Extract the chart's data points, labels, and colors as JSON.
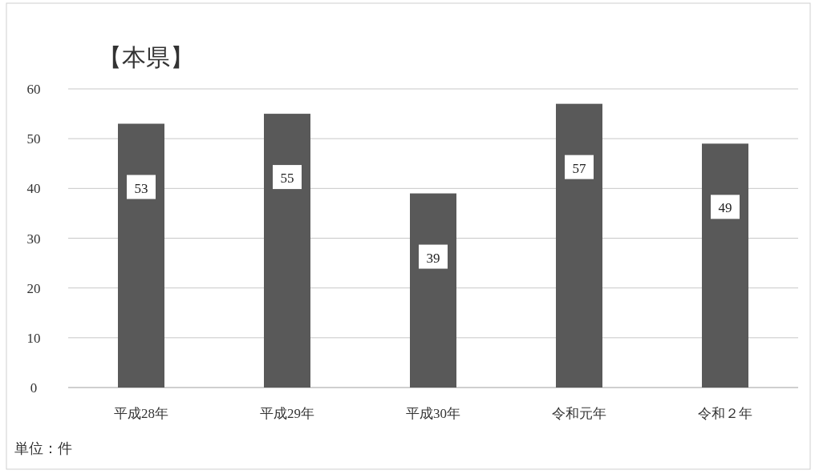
{
  "chart_data": {
    "type": "bar",
    "title": "【本県】",
    "categories": [
      "平成28年",
      "平成29年",
      "平成30年",
      "令和元年",
      "令和２年"
    ],
    "values": [
      53,
      55,
      39,
      57,
      49
    ],
    "color": "#595959",
    "ylim": [
      0,
      60
    ],
    "yticks": [
      0,
      10,
      20,
      30,
      40,
      50,
      60
    ],
    "grid": "y",
    "data_labels": true,
    "annotations": [
      "単位：件"
    ]
  }
}
